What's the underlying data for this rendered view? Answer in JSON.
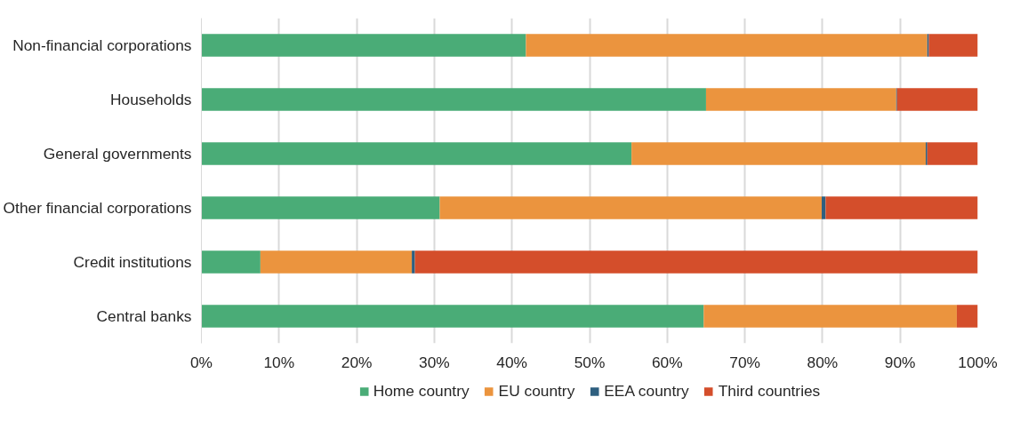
{
  "chart_data": {
    "type": "bar",
    "orientation": "horizontal",
    "stacked": true,
    "categories": [
      "Non-financial corporations",
      "Households",
      "General governments",
      "Other financial corporations",
      "Credit institutions",
      "Central banks"
    ],
    "series": [
      {
        "name": "Home country",
        "color": "#4aac77",
        "values": [
          41.8,
          65.0,
          55.4,
          30.7,
          7.6,
          64.7
        ]
      },
      {
        "name": "EU country",
        "color": "#eb943e",
        "values": [
          51.7,
          24.5,
          37.9,
          49.2,
          19.5,
          32.6
        ]
      },
      {
        "name": "EEA country",
        "color": "#2e5f7f",
        "values": [
          0.2,
          0.1,
          0.2,
          0.5,
          0.4,
          0.0
        ]
      },
      {
        "name": "Third countries",
        "color": "#d44e2b",
        "values": [
          6.3,
          10.4,
          6.5,
          19.6,
          72.5,
          2.7
        ]
      }
    ],
    "xlim": [
      0,
      100
    ],
    "xticks": [
      {
        "value": 0,
        "label": "0%"
      },
      {
        "value": 10,
        "label": "10%"
      },
      {
        "value": 20,
        "label": "20%"
      },
      {
        "value": 30,
        "label": "30%"
      },
      {
        "value": 40,
        "label": "40%"
      },
      {
        "value": 50,
        "label": "50%"
      },
      {
        "value": 60,
        "label": "60%"
      },
      {
        "value": 70,
        "label": "70%"
      },
      {
        "value": 80,
        "label": "80%"
      },
      {
        "value": 90,
        "label": "90%"
      },
      {
        "value": 100,
        "label": "100%"
      }
    ],
    "grid": "x",
    "legend": "bottom"
  }
}
